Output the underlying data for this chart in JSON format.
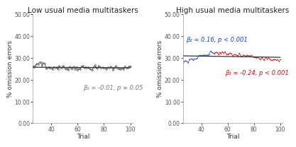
{
  "left_title": "Low usual media multitaskers",
  "right_title": "High usual media multitaskers",
  "xlabel": "Trial",
  "ylabel": "% omission errors",
  "ylim": [
    0.0,
    50.0
  ],
  "yticks": [
    0.0,
    10.0,
    20.0,
    30.0,
    40.0,
    50.0
  ],
  "ytick_labels": [
    "0.00",
    "10.00",
    "20.00",
    "30.00",
    "40.00",
    "50.00"
  ],
  "xlim_left": [
    26,
    102
  ],
  "xlim_right": [
    26,
    102
  ],
  "xticks": [
    40,
    60,
    80,
    100
  ],
  "left_annotation": "β₁ = -0.01, p = 0.05",
  "right_annotation_blue": "β₂ = 0.16, p < 0.001",
  "right_annotation_red": "β₁ = -0.24, p < 0.001",
  "bg_color": "#ffffff",
  "panel_bg": "#ffffff",
  "line_color_left": "#1a1a1a",
  "line_color_blue": "#1144bb",
  "line_color_red": "#bb1111",
  "line_color_trend": "#333333",
  "title_fontsize": 7.5,
  "label_fontsize": 6.5,
  "tick_fontsize": 5.5,
  "annot_fontsize": 6.0,
  "spine_color": "#aaaaaa"
}
